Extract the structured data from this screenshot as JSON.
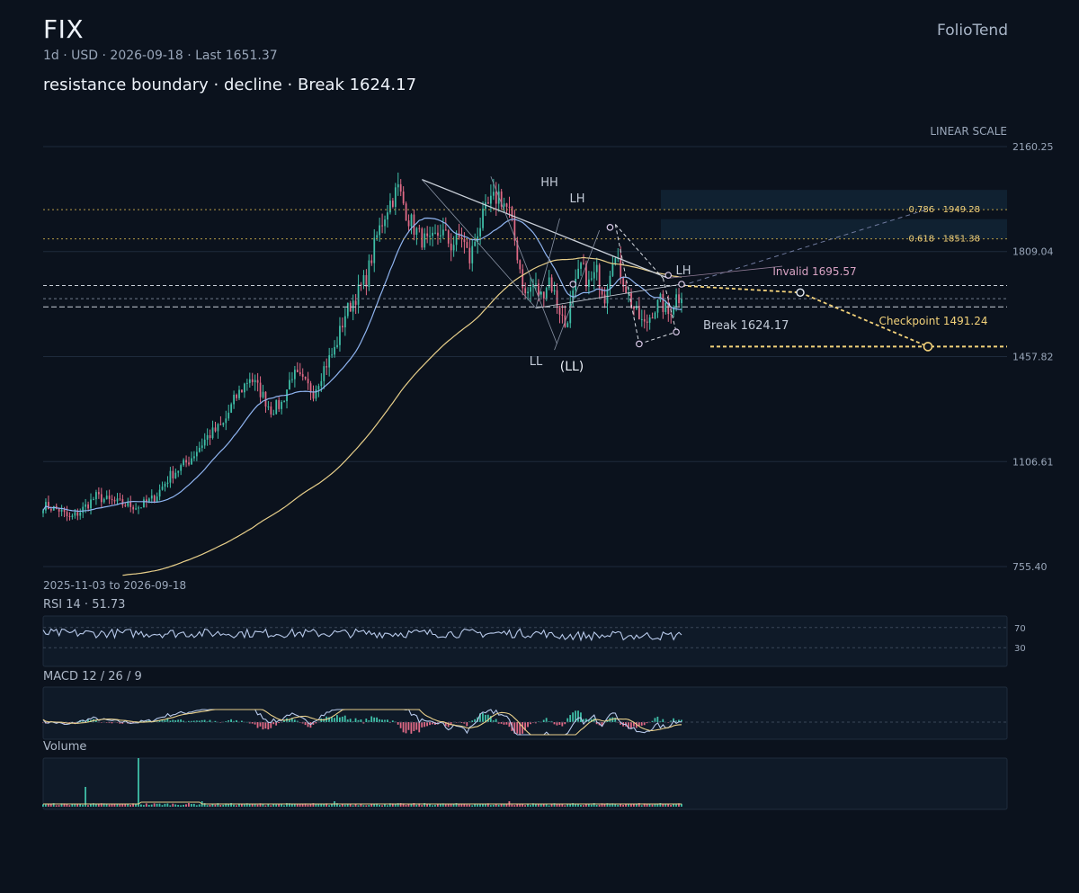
{
  "header": {
    "ticker": "FIX",
    "subtitle": "1d · USD · 2026-09-18 · Last 1651.37",
    "description": "resistance boundary · decline · Break 1624.17",
    "brand": "FolioTend"
  },
  "colors": {
    "background": "#0b121d",
    "up": "#3fbfa8",
    "down": "#e06a86",
    "ma_fast": "#8fb4f0",
    "ma_slow": "#e8cf8a",
    "accent_yellow": "#f3d27a",
    "invalid": "#d9a3c4"
  },
  "chart_data": {
    "type": "candlestick",
    "scale_label": "LINEAR SCALE",
    "date_range_label": "2025-11-03 to 2026-09-18",
    "x_start": "2025-11-03",
    "x_end": "2026-09-18",
    "ylim": [
      755.4,
      2160.25
    ],
    "y_ticks": [
      "2160.25",
      "1809.04",
      "1457.82",
      "1106.61",
      "755.40"
    ],
    "anchors": [
      {
        "i": 0,
        "c": 960
      },
      {
        "i": 6,
        "c": 945
      },
      {
        "i": 10,
        "c": 915
      },
      {
        "i": 14,
        "c": 940
      },
      {
        "i": 20,
        "c": 990
      },
      {
        "i": 25,
        "c": 975
      },
      {
        "i": 30,
        "c": 965
      },
      {
        "i": 36,
        "c": 955
      },
      {
        "i": 42,
        "c": 985
      },
      {
        "i": 48,
        "c": 1060
      },
      {
        "i": 55,
        "c": 1110
      },
      {
        "i": 62,
        "c": 1190
      },
      {
        "i": 68,
        "c": 1230
      },
      {
        "i": 72,
        "c": 1310
      },
      {
        "i": 78,
        "c": 1390
      },
      {
        "i": 82,
        "c": 1340
      },
      {
        "i": 86,
        "c": 1280
      },
      {
        "i": 90,
        "c": 1300
      },
      {
        "i": 94,
        "c": 1400
      },
      {
        "i": 97,
        "c": 1380
      },
      {
        "i": 102,
        "c": 1340
      },
      {
        "i": 106,
        "c": 1420
      },
      {
        "i": 110,
        "c": 1480
      },
      {
        "i": 114,
        "c": 1600
      },
      {
        "i": 118,
        "c": 1660
      },
      {
        "i": 122,
        "c": 1720
      },
      {
        "i": 126,
        "c": 1860
      },
      {
        "i": 130,
        "c": 1960
      },
      {
        "i": 134,
        "c": 2020
      },
      {
        "i": 138,
        "c": 1920
      },
      {
        "i": 142,
        "c": 1860
      },
      {
        "i": 146,
        "c": 1830
      },
      {
        "i": 150,
        "c": 1880
      },
      {
        "i": 154,
        "c": 1830
      },
      {
        "i": 158,
        "c": 1860
      },
      {
        "i": 161,
        "c": 1780
      },
      {
        "i": 164,
        "c": 1880
      },
      {
        "i": 168,
        "c": 1960
      },
      {
        "i": 172,
        "c": 2000
      },
      {
        "i": 176,
        "c": 1940
      },
      {
        "i": 179,
        "c": 1800
      },
      {
        "i": 182,
        "c": 1660
      },
      {
        "i": 185,
        "c": 1700
      },
      {
        "i": 188,
        "c": 1660
      },
      {
        "i": 191,
        "c": 1720
      },
      {
        "i": 194,
        "c": 1640
      },
      {
        "i": 197,
        "c": 1560
      },
      {
        "i": 200,
        "c": 1660
      },
      {
        "i": 203,
        "c": 1760
      },
      {
        "i": 206,
        "c": 1700
      },
      {
        "i": 209,
        "c": 1740
      },
      {
        "i": 212,
        "c": 1660
      },
      {
        "i": 215,
        "c": 1800
      },
      {
        "i": 218,
        "c": 1740
      },
      {
        "i": 221,
        "c": 1660
      },
      {
        "i": 224,
        "c": 1600
      },
      {
        "i": 227,
        "c": 1560
      },
      {
        "i": 230,
        "c": 1610
      },
      {
        "i": 233,
        "c": 1640
      },
      {
        "i": 236,
        "c": 1600
      },
      {
        "i": 239,
        "c": 1660
      },
      {
        "i": 241,
        "c": 1651.37
      }
    ],
    "count": 242,
    "levels": [
      {
        "name": "Invalid",
        "value": 1695.57,
        "label": "Invalid 1695.57"
      },
      {
        "name": "Break",
        "value": 1624.17,
        "label": "Break 1624.17"
      },
      {
        "name": "Checkpoint",
        "value": 1491.24,
        "label": "Checkpoint 1491.24"
      },
      {
        "name": "last",
        "value": 1651.37
      }
    ],
    "fib": [
      {
        "ratio": "0.786",
        "value": 1949.28,
        "label": "0.786 · 1949.28"
      },
      {
        "ratio": "0.618",
        "value": 1851.38,
        "label": "0.618 · 1851.38"
      }
    ],
    "pivots": [
      {
        "label": "HH",
        "i": 188,
        "v": 1920
      },
      {
        "label": "LH",
        "i": 193,
        "v": 1880
      },
      {
        "label": "LL",
        "i": 185,
        "v": 1480
      },
      {
        "label": "(LL)",
        "i": 193,
        "v": 1470
      },
      {
        "label": "LH",
        "i": 236,
        "v": 1750
      }
    ],
    "rsi": {
      "label": "RSI 14 · 51.73",
      "value": 51.73,
      "levels": [
        "70",
        "30"
      ]
    },
    "macd": {
      "label": "MACD 12 / 26 / 9"
    },
    "volume": {
      "label": "Volume"
    }
  }
}
